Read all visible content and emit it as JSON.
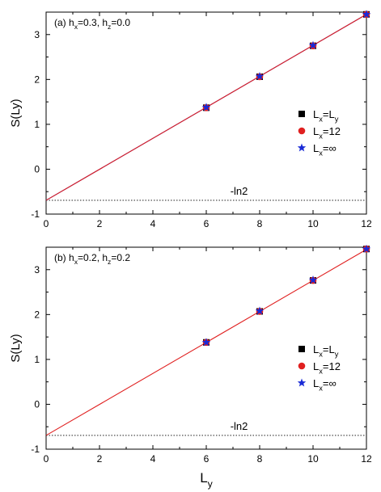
{
  "chart_data": [
    {
      "type": "scatter",
      "panel_label": "(a)",
      "annotation": {
        "hx_sym": "h",
        "hx_sub": "x",
        "hx_val": "=0.3, ",
        "hz_sym": "h",
        "hz_sub": "z",
        "hz_val": "=0.0"
      },
      "ylabel": "S(Ly)",
      "xlabel": "",
      "xlim": [
        0,
        12
      ],
      "ylim": [
        -1,
        3.5
      ],
      "xticks": [
        0,
        2,
        4,
        6,
        8,
        10,
        12
      ],
      "yticks": [
        -1,
        0,
        1,
        2,
        3
      ],
      "reference_line": {
        "y": -0.693,
        "label": "-ln2",
        "label_x": 6.9
      },
      "fit_lines": [
        {
          "color": "#1f2fd8",
          "x": [
            0,
            12
          ],
          "y": [
            -0.693,
            3.45
          ]
        },
        {
          "color": "#e02020",
          "x": [
            0,
            12
          ],
          "y": [
            -0.693,
            3.45
          ]
        }
      ],
      "series": [
        {
          "label_main": "L",
          "label_sub": "x",
          "label_rest": "=L",
          "label_rest_sub": "y",
          "marker": "square",
          "color": "#000000",
          "x": [
            6,
            8,
            10,
            12
          ],
          "y": [
            1.37,
            2.06,
            2.75,
            3.45
          ]
        },
        {
          "label_main": "L",
          "label_sub": "x",
          "label_rest": "=12",
          "label_rest_sub": "",
          "marker": "circle",
          "color": "#e02020",
          "x": [
            6,
            8,
            10,
            12
          ],
          "y": [
            1.37,
            2.06,
            2.75,
            3.45
          ]
        },
        {
          "label_main": "L",
          "label_sub": "x",
          "label_rest": "=∞",
          "label_rest_sub": "",
          "marker": "star",
          "color": "#1a2bd6",
          "x": [
            6,
            8,
            10,
            12
          ],
          "y": [
            1.38,
            2.07,
            2.76,
            3.45
          ]
        }
      ],
      "legend_placement": "right"
    },
    {
      "type": "scatter",
      "panel_label": "(b)",
      "annotation": {
        "hx_sym": "h",
        "hx_sub": "x",
        "hx_val": "=0.2, ",
        "hz_sym": "h",
        "hz_sub": "z",
        "hz_val": "=0.2"
      },
      "ylabel": "S(Ly)",
      "xlabel_main": "L",
      "xlabel_sub": "y",
      "xlim": [
        0,
        12
      ],
      "ylim": [
        -1,
        3.5
      ],
      "xticks": [
        0,
        2,
        4,
        6,
        8,
        10,
        12
      ],
      "yticks": [
        -1,
        0,
        1,
        2,
        3
      ],
      "reference_line": {
        "y": -0.693,
        "label": "-ln2",
        "label_x": 6.9
      },
      "fit_lines": [
        {
          "color": "#e02020",
          "x": [
            0,
            12
          ],
          "y": [
            -0.693,
            3.45
          ]
        }
      ],
      "series": [
        {
          "label_main": "L",
          "label_sub": "x",
          "label_rest": "=L",
          "label_rest_sub": "y",
          "marker": "square",
          "color": "#000000",
          "x": [
            6,
            8,
            10,
            12
          ],
          "y": [
            1.38,
            2.07,
            2.76,
            3.46
          ]
        },
        {
          "label_main": "L",
          "label_sub": "x",
          "label_rest": "=12",
          "label_rest_sub": "",
          "marker": "circle",
          "color": "#e02020",
          "x": [
            6,
            8,
            10,
            12
          ],
          "y": [
            1.38,
            2.07,
            2.76,
            3.46
          ]
        },
        {
          "label_main": "L",
          "label_sub": "x",
          "label_rest": "=∞",
          "label_rest_sub": "",
          "marker": "star",
          "color": "#1a2bd6",
          "x": [
            6,
            8,
            10,
            12
          ],
          "y": [
            1.38,
            2.08,
            2.77,
            3.46
          ]
        }
      ],
      "legend_placement": "right"
    }
  ]
}
